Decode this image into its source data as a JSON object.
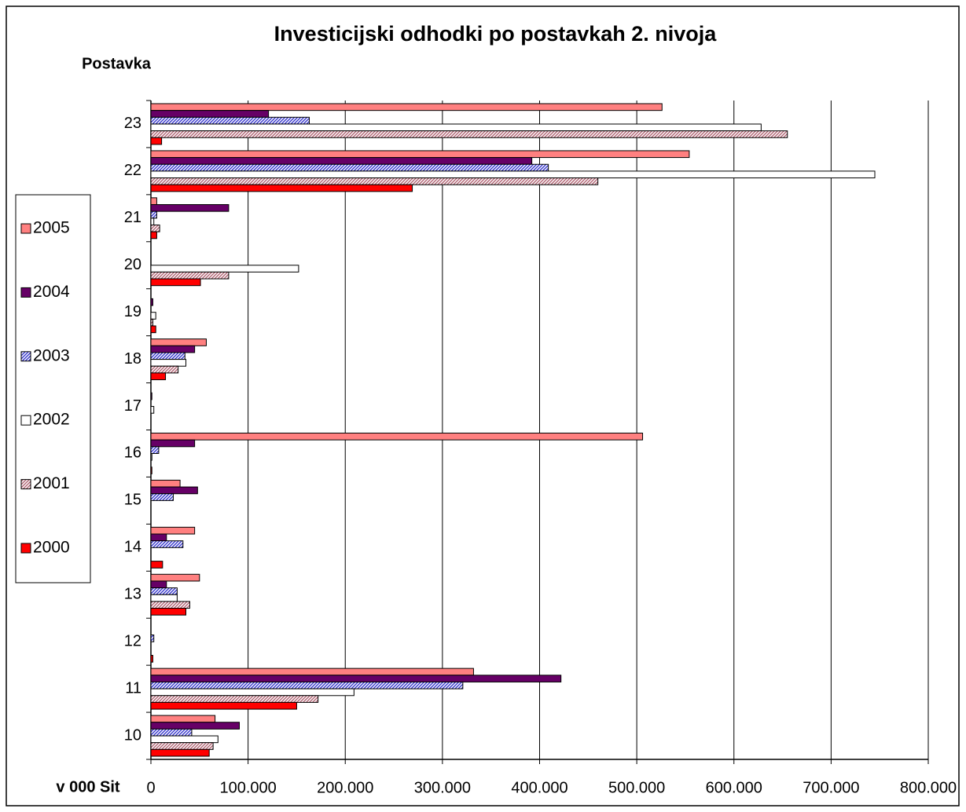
{
  "chart_data": {
    "type": "bar",
    "orientation": "horizontal",
    "title": "Investicijski odhodki po postavkah 2. nivoja",
    "y_label": "Postavka",
    "x_label": "v 000 Sit",
    "categories": [
      "10",
      "11",
      "12",
      "13",
      "14",
      "15",
      "16",
      "17",
      "18",
      "19",
      "20",
      "21",
      "22",
      "23"
    ],
    "series": [
      {
        "name": "2005",
        "color": "#ff8080",
        "values": [
          66000,
          332000,
          0,
          50000,
          45000,
          30000,
          506000,
          0,
          57000,
          0,
          0,
          6000,
          554000,
          526000
        ]
      },
      {
        "name": "2004",
        "color": "#660066",
        "values": [
          91000,
          422000,
          0,
          16000,
          16000,
          48000,
          45000,
          1000,
          45000,
          2000,
          0,
          80000,
          392000,
          121000
        ]
      },
      {
        "name": "2003",
        "color": "#3333cc",
        "pattern": "diagonal",
        "values": [
          42000,
          321000,
          3000,
          27000,
          33000,
          23000,
          8000,
          0,
          35000,
          0,
          0,
          6000,
          409000,
          163000
        ]
      },
      {
        "name": "2002",
        "color": "#ffffff",
        "values": [
          69000,
          209000,
          0,
          27000,
          0,
          0,
          1000,
          3000,
          36000,
          5000,
          152000,
          3000,
          745000,
          628000
        ]
      },
      {
        "name": "2001",
        "color": "#b06070",
        "pattern": "diagonal",
        "values": [
          64000,
          172000,
          0,
          40000,
          0,
          0,
          0,
          0,
          28000,
          2000,
          80000,
          9000,
          460000,
          655000
        ]
      },
      {
        "name": "2000",
        "color": "#ff0000",
        "values": [
          60000,
          150000,
          2000,
          36000,
          12000,
          0,
          1000,
          0,
          15000,
          5000,
          51000,
          6000,
          269000,
          11000
        ]
      }
    ],
    "xlim": [
      0,
      800000
    ],
    "xticks": [
      0,
      {
        "value": 100000,
        "label": "100.000"
      },
      {
        "value": 200000,
        "label": "200.000"
      },
      {
        "value": 300000,
        "label": "300.000"
      },
      {
        "value": 400000,
        "label": "400.000"
      },
      {
        "value": 500000,
        "label": "500.000"
      },
      {
        "value": 600000,
        "label": "600.000"
      },
      {
        "value": 700000,
        "label": "700.000"
      },
      {
        "value": 800000,
        "label": "800.000"
      }
    ],
    "grid": true,
    "legend": "left"
  }
}
